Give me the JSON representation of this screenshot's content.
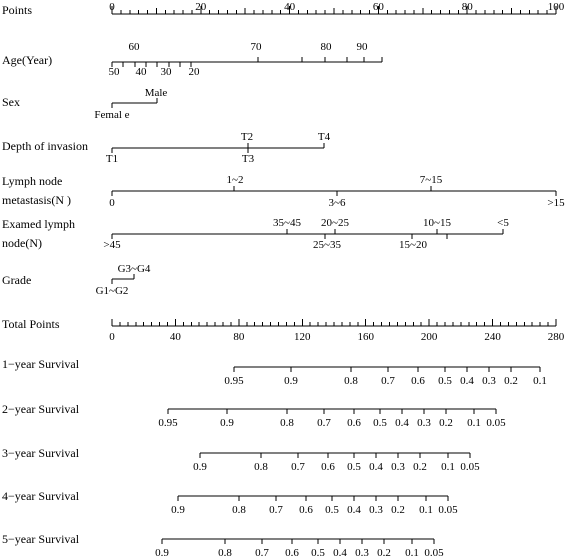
{
  "rows": [
    {
      "key": "points",
      "label": "Points",
      "labels_above": [
        "0",
        "20",
        "40",
        "60",
        "80",
        "100"
      ],
      "labels_below": []
    },
    {
      "key": "age",
      "label": "Age(Year)",
      "labels_above": [
        "60",
        "70",
        "80",
        "90"
      ],
      "labels_below": [
        "50",
        "40",
        "30",
        "20"
      ]
    },
    {
      "key": "sex",
      "label": "Sex",
      "labels_above": [
        "Male"
      ],
      "labels_below": [
        "Femal e"
      ]
    },
    {
      "key": "depth",
      "label": "Depth of invasion",
      "labels_above": [
        "T2",
        "T4"
      ],
      "labels_below": [
        "T1",
        "T3"
      ]
    },
    {
      "key": "lymph",
      "label_lines": [
        "Lymph node",
        "metastasis(N )"
      ],
      "labels_above": [
        "1~2",
        "7~15"
      ],
      "labels_below": [
        "0",
        "3~6",
        ">15"
      ]
    },
    {
      "key": "examed",
      "label_lines": [
        "Examed lymph",
        "node(N)"
      ],
      "labels_above": [
        "35~45",
        "20~25",
        "10~15",
        "<5"
      ],
      "labels_below": [
        ">45",
        "25~35",
        "15~20"
      ]
    },
    {
      "key": "grade",
      "label": "Grade",
      "labels_above": [
        "G3~G4"
      ],
      "labels_below": [
        "G1~G2"
      ]
    },
    {
      "key": "total",
      "label": "Total Points",
      "labels_above": [],
      "labels_below": [
        "0",
        "40",
        "80",
        "120",
        "160",
        "200",
        "240",
        "280"
      ]
    },
    {
      "key": "s1",
      "label": "1−year Survival",
      "labels_above": [],
      "labels_below": [
        "0.95",
        "0.9",
        "0.8",
        "0.7",
        "0.6",
        "0.5",
        "0.4",
        "0.3",
        "0.2",
        "0.1"
      ]
    },
    {
      "key": "s2",
      "label": "2−year Survival",
      "labels_above": [],
      "labels_below": [
        "0.95",
        "0.9",
        "0.8",
        "0.7",
        "0.6",
        "0.5",
        "0.4",
        "0.3",
        "0.2",
        "0.1",
        "0.05"
      ]
    },
    {
      "key": "s3",
      "label": "3−year Survival",
      "labels_above": [],
      "labels_below": [
        "0.9",
        "0.8",
        "0.7",
        "0.6",
        "0.5",
        "0.4",
        "0.3",
        "0.2",
        "0.1",
        "0.05"
      ]
    },
    {
      "key": "s4",
      "label": "4−year Survival",
      "labels_above": [],
      "labels_below": [
        "0.9",
        "0.8",
        "0.7",
        "0.6",
        "0.5",
        "0.4",
        "0.3",
        "0.2",
        "0.1",
        "0.05"
      ]
    },
    {
      "key": "s5",
      "label": "5−year Survival",
      "labels_above": [],
      "labels_below": [
        "0.9",
        "0.8",
        "0.7",
        "0.6",
        "0.5",
        "0.4",
        "0.3",
        "0.2",
        "0.1",
        "0.05"
      ]
    }
  ]
}
